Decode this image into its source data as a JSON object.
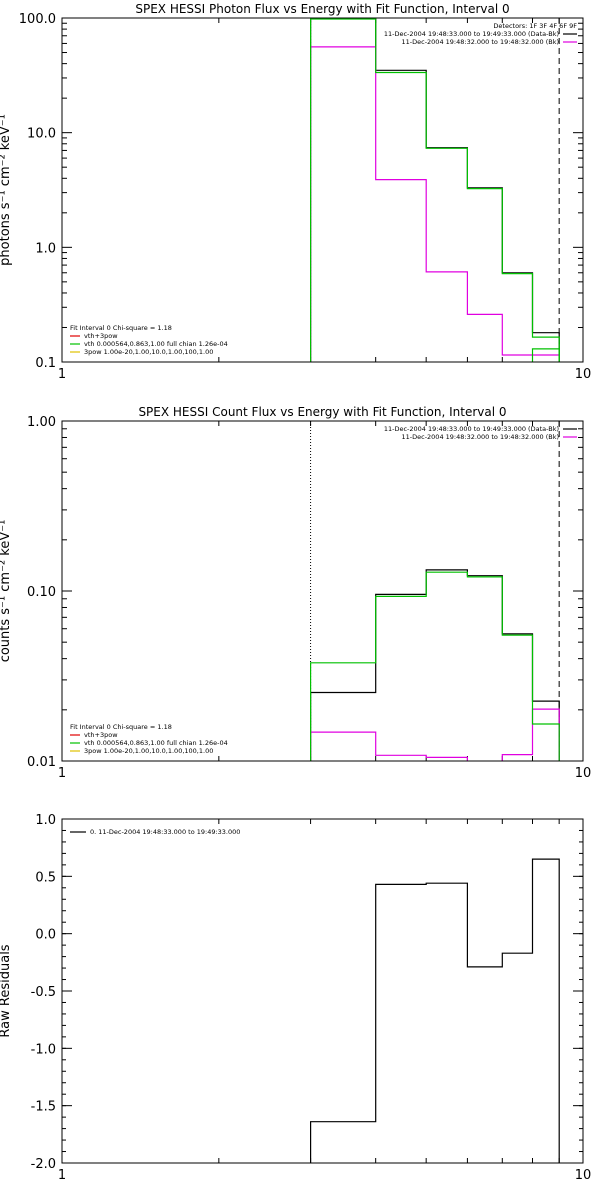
{
  "chart_data": [
    {
      "type": "line",
      "step": true,
      "title": "SPEX HESSI Photon Flux vs Energy with Fit Function, Interval 0",
      "xlabel": "",
      "ylabel": "photons s⁻¹ cm⁻² keV⁻¹",
      "xscale": "log",
      "yscale": "log",
      "xlim": [
        1,
        10
      ],
      "ylim": [
        0.1,
        100
      ],
      "xticks": [
        "1",
        "10"
      ],
      "yticks": [
        "0.1",
        "1.0",
        "10.0",
        "100.0"
      ],
      "x_edges": [
        3.0,
        4.0,
        5.0,
        6.0,
        7.0,
        8.0,
        9.0
      ],
      "series": [
        {
          "name": "11-Dec-2004 19:48:33.000 to 19:49:33.000 (Data-Bk)",
          "color": "#000000",
          "values": [
            100.5,
            35.0,
            7.4,
            3.3,
            0.6,
            0.18
          ]
        },
        {
          "name": "11-Dec-2004 19:48:32.000 to 19:48:32.000 (Bk)",
          "color": "#e000e0",
          "values": [
            56.0,
            3.9,
            0.61,
            0.26,
            0.115,
            0.115
          ]
        },
        {
          "name": "vth+3pow",
          "color": "#00c000",
          "values": [
            98.0,
            33.5,
            7.3,
            3.25,
            0.59,
            0.165
          ]
        },
        {
          "name": "",
          "color": "#00c000",
          "values": [
            null,
            null,
            null,
            null,
            null,
            0.13
          ]
        }
      ],
      "vlines": [
        {
          "x": 3.0,
          "style": "dotted",
          "color": "#000000"
        },
        {
          "x": 9.0,
          "style": "dashed",
          "color": "#000000"
        }
      ],
      "legend_top": {
        "placement": "top-right",
        "header": "Detectors: 1F 3F 4F 6F 9F",
        "lines": [
          {
            "text": "11-Dec-2004 19:48:33.000 to 19:49:33.000 (Data-Bk)",
            "color": "#000000"
          },
          {
            "text": "11-Dec-2004 19:48:32.000 to 19:48:32.000 (Bk)",
            "color": "#e000e0"
          }
        ]
      },
      "legend_bottom": {
        "placement": "bottom-left",
        "header": "Fit Interval 0   Chi-square = 1.18",
        "lines": [
          {
            "text": "vth+3pow",
            "color": "#e00000"
          },
          {
            "text": "vth 0.000564,0.863,1.00  full chian 1.26e-04",
            "color": "#00c000"
          },
          {
            "text": "3pow 1.00e-20,1.00,10.0,1.00,100,1.00",
            "color": "#e0c000"
          }
        ]
      }
    },
    {
      "type": "line",
      "step": true,
      "title": "SPEX HESSI Count Flux vs Energy with Fit Function, Interval 0",
      "xlabel": "",
      "ylabel": "counts s⁻¹ cm⁻² keV⁻¹",
      "xscale": "log",
      "yscale": "log",
      "xlim": [
        1,
        10
      ],
      "ylim": [
        0.01,
        1.0
      ],
      "xticks": [
        "1",
        "10"
      ],
      "yticks": [
        "0.01",
        "0.10",
        "1.00"
      ],
      "x_edges": [
        3.0,
        4.0,
        5.0,
        6.0,
        7.0,
        8.0,
        9.0
      ],
      "series": [
        {
          "name": "11-Dec-2004 19:48:33.000 to 19:49:33.000 (Data-Bk)",
          "color": "#000000",
          "values": [
            0.0253,
            0.0955,
            0.133,
            0.123,
            0.056,
            0.0225
          ]
        },
        {
          "name": "11-Dec-2004 19:48:32.000 to 19:48:32.000 (Bk)",
          "color": "#e000e0",
          "values": [
            0.0148,
            0.0108,
            0.0105,
            0.0099,
            0.0109,
            0.0202
          ]
        },
        {
          "name": "vth+3pow",
          "color": "#00c000",
          "values": [
            0.0378,
            0.093,
            0.129,
            0.121,
            0.055,
            0.0165
          ]
        }
      ],
      "vlines": [
        {
          "x": 3.0,
          "style": "dotted",
          "color": "#000000"
        },
        {
          "x": 9.0,
          "style": "dashed",
          "color": "#000000"
        }
      ],
      "legend_top": {
        "placement": "top-right",
        "header": "",
        "lines": [
          {
            "text": "11-Dec-2004 19:48:33.000 to 19:49:33.000 (Data-Bk)",
            "color": "#000000"
          },
          {
            "text": "11-Dec-2004 19:48:32.000 to 19:48:32.000 (Bk)",
            "color": "#e000e0"
          }
        ]
      },
      "legend_bottom": {
        "placement": "bottom-left",
        "header": "Fit Interval 0   Chi-square = 1.18",
        "lines": [
          {
            "text": "vth+3pow",
            "color": "#e00000"
          },
          {
            "text": "vth 0.000564,0.863,1.00  full chian 1.26e-04",
            "color": "#00c000"
          },
          {
            "text": "3pow 1.00e-20,1.00,10.0,1.00,100,1.00",
            "color": "#e0c000"
          }
        ]
      }
    },
    {
      "type": "line",
      "step": true,
      "title": "",
      "xlabel": "",
      "ylabel": "Raw Residuals",
      "xscale": "log",
      "yscale": "linear",
      "xlim": [
        1,
        10
      ],
      "ylim": [
        -2.0,
        1.0
      ],
      "xticks": [
        "1",
        "10"
      ],
      "yticks": [
        "-2.0",
        "-1.5",
        "-1.0",
        "-0.5",
        "0.0",
        "0.5",
        "1.0"
      ],
      "x_edges": [
        3.0,
        4.0,
        5.0,
        6.0,
        7.0,
        8.0,
        9.0
      ],
      "series": [
        {
          "name": "0. 11-Dec-2004 19:48:33.000 to 19:49:33.000",
          "color": "#000000",
          "values": [
            -1.64,
            0.43,
            0.44,
            -0.29,
            -0.17,
            0.65
          ]
        }
      ],
      "vlines": [],
      "legend_top": {
        "placement": "top-left",
        "header": "",
        "lines": [
          {
            "text": "0. 11-Dec-2004 19:48:33.000 to 19:49:33.000",
            "color": "#000000"
          }
        ]
      },
      "legend_bottom": null
    }
  ]
}
